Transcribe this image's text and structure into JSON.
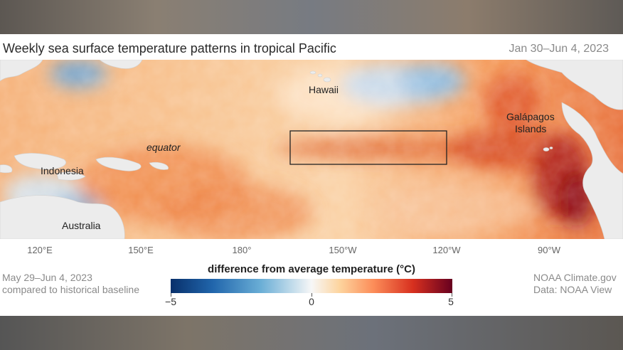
{
  "header": {
    "title": "Weekly sea surface temperature patterns in tropical Pacific",
    "date_range": "Jan 30–Jun 4, 2023"
  },
  "map": {
    "labels": {
      "hawaii": "Hawaii",
      "galapagos_line1": "Galápagos",
      "galapagos_line2": "Islands",
      "equator": "equator",
      "indonesia": "Indonesia",
      "australia": "Australia"
    },
    "longitude_ticks": [
      "120°E",
      "150°E",
      "180°",
      "150°W",
      "120°W",
      "90°W"
    ],
    "colors": {
      "land": "#ececec",
      "warm_strong": "#a50f15",
      "warm": "#f4a15c",
      "cool": "#7fb2dc"
    }
  },
  "footer": {
    "week": "May 29–Jun 4, 2023",
    "baseline": "compared to historical baseline",
    "credit": "NOAA Climate.gov",
    "data_source": "Data: NOAA View"
  },
  "legend": {
    "title": "difference from average temperature (°C)",
    "min": "−5",
    "mid": "0",
    "max": "5",
    "colors": [
      "#08306b",
      "#2166ac",
      "#6aaed6",
      "#f7f7f7",
      "#fdd49e",
      "#fc8d59",
      "#d7301f",
      "#67001f"
    ]
  }
}
